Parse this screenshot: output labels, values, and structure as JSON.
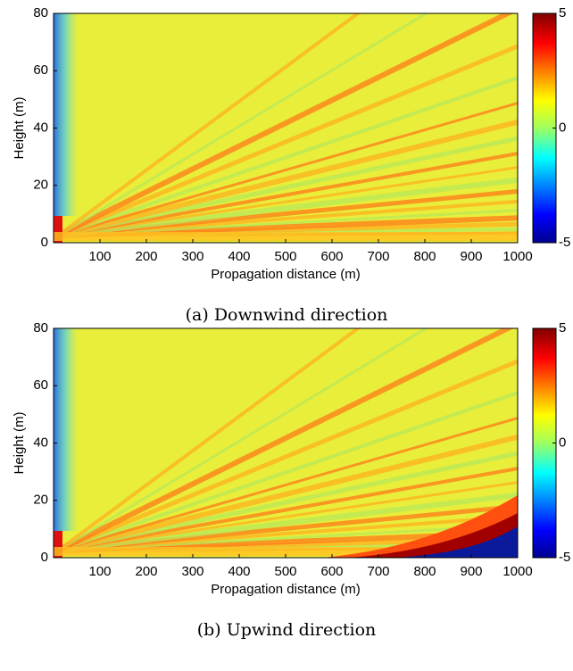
{
  "chart_data": [
    {
      "type": "heatmap",
      "caption": "(a) Downwind direction",
      "xlabel": "Propagation distance (m)",
      "ylabel": "Height (m)",
      "xlim": [
        0,
        1000
      ],
      "xticks": [
        100,
        200,
        300,
        400,
        500,
        600,
        700,
        800,
        900,
        1000
      ],
      "ylim": [
        0,
        80
      ],
      "yticks": [
        0,
        20,
        40,
        60,
        80
      ],
      "clim": [
        -5,
        5
      ],
      "cticks": [
        -5,
        0,
        5
      ],
      "colormap": "jet"
    },
    {
      "type": "heatmap",
      "caption": "(b) Upwind direction",
      "xlabel": "Propagation distance (m)",
      "ylabel": "Height (m)",
      "xlim": [
        0,
        1000
      ],
      "xticks": [
        100,
        200,
        300,
        400,
        500,
        600,
        700,
        800,
        900,
        1000
      ],
      "ylim": [
        0,
        80
      ],
      "yticks": [
        0,
        20,
        40,
        60,
        80
      ],
      "clim": [
        -5,
        5
      ],
      "cticks": [
        -5,
        0,
        5
      ],
      "colormap": "jet"
    }
  ]
}
